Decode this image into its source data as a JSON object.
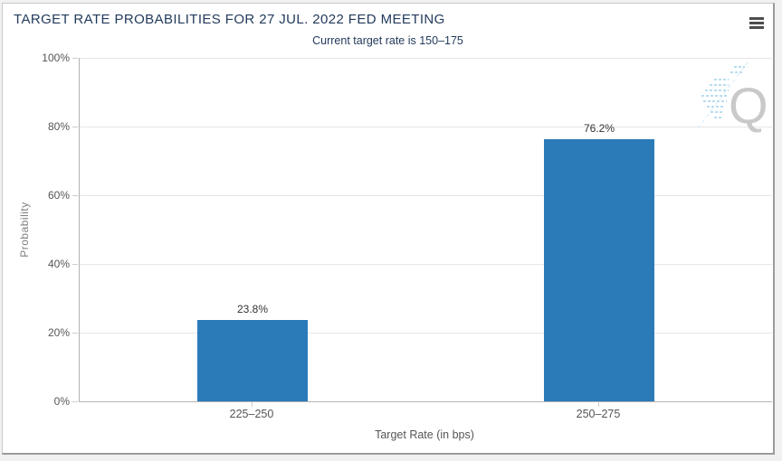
{
  "chart_data": {
    "type": "bar",
    "title": "TARGET RATE PROBABILITIES FOR 27 JUL. 2022 FED MEETING",
    "subtitle": "Current target rate is 150–175",
    "categories": [
      "225–250",
      "250–275"
    ],
    "values": [
      23.8,
      76.2
    ],
    "data_labels": [
      "23.8%",
      "76.2%"
    ],
    "xlabel": "Target Rate (in bps)",
    "ylabel": "Probability",
    "ylim": [
      0,
      100
    ],
    "ytick_labels": [
      "100%",
      "80%",
      "60%",
      "40%",
      "20%",
      "0%"
    ],
    "grid": true,
    "legend": "none",
    "bar_color": "#2b7bb9",
    "title_color": "#233a5c",
    "watermark_letter": "Q",
    "watermark_color": "#c9c9c9"
  },
  "header": {
    "menu_icon": "hamburger-icon"
  }
}
